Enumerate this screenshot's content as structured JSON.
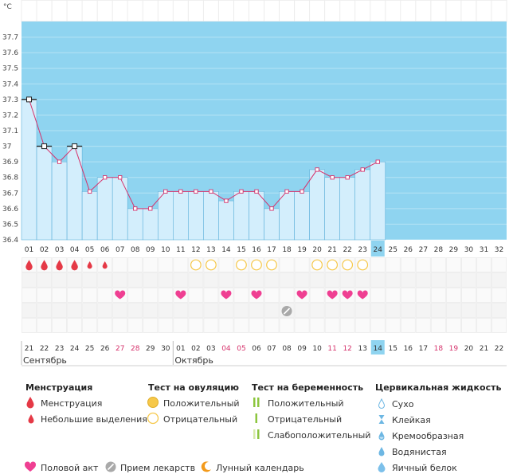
{
  "chart_data": {
    "type": "line",
    "title": "",
    "ylabel": "°C",
    "ylim": [
      36.4,
      37.8
    ],
    "yticks": [
      "36.4",
      "36.5",
      "36.6",
      "36.7",
      "36.8",
      "36.9",
      "37",
      "37.1",
      "37.2",
      "37.3",
      "37.4",
      "37.5",
      "37.6",
      "37.7"
    ],
    "cycle_days": [
      "01",
      "02",
      "03",
      "04",
      "05",
      "06",
      "07",
      "08",
      "09",
      "10",
      "11",
      "12",
      "13",
      "14",
      "15",
      "16",
      "17",
      "18",
      "19",
      "20",
      "21",
      "22",
      "23",
      "24",
      "25",
      "26",
      "27",
      "28",
      "29",
      "30",
      "31",
      "32"
    ],
    "today_index": 23,
    "temperatures": [
      37.3,
      37.0,
      36.9,
      37.0,
      36.71,
      36.8,
      36.8,
      36.6,
      36.6,
      36.71,
      36.71,
      36.71,
      36.71,
      36.65,
      36.71,
      36.71,
      36.6,
      36.71,
      36.71,
      36.85,
      36.8,
      36.8,
      36.85,
      36.9
    ],
    "marker_style": [
      "big",
      "big",
      "small",
      "big",
      "small",
      "small",
      "small",
      "small",
      "small",
      "small",
      "small",
      "small",
      "small",
      "small",
      "small",
      "small",
      "small",
      "small",
      "small",
      "small",
      "small",
      "small",
      "small",
      "small"
    ],
    "dates": [
      "21",
      "22",
      "23",
      "24",
      "25",
      "26",
      "27",
      "28",
      "29",
      "30",
      "01",
      "02",
      "03",
      "04",
      "05",
      "06",
      "07",
      "08",
      "09",
      "10",
      "11",
      "12",
      "13",
      "14",
      "15",
      "16",
      "17",
      "18",
      "19",
      "20",
      "21",
      "22"
    ],
    "weekend_dates": [
      6,
      7,
      13,
      14,
      20,
      21,
      27,
      28
    ],
    "months": [
      {
        "label": "Сентябрь",
        "start": 0
      },
      {
        "label": "Октябрь",
        "start": 10
      }
    ],
    "rows": {
      "menstruation": [
        {
          "day": 0,
          "kind": "heavy"
        },
        {
          "day": 1,
          "kind": "heavy"
        },
        {
          "day": 2,
          "kind": "heavy"
        },
        {
          "day": 3,
          "kind": "heavy"
        },
        {
          "day": 4,
          "kind": "light"
        },
        {
          "day": 5,
          "kind": "light"
        }
      ],
      "ovulation_test": [
        {
          "day": 11,
          "kind": "negative"
        },
        {
          "day": 12,
          "kind": "negative"
        },
        {
          "day": 14,
          "kind": "negative"
        },
        {
          "day": 15,
          "kind": "negative"
        },
        {
          "day": 16,
          "kind": "negative"
        },
        {
          "day": 19,
          "kind": "negative"
        },
        {
          "day": 20,
          "kind": "negative"
        },
        {
          "day": 21,
          "kind": "negative"
        },
        {
          "day": 22,
          "kind": "negative"
        }
      ],
      "intercourse": [
        6,
        10,
        13,
        15,
        18,
        20,
        21,
        22
      ],
      "medication": [
        17
      ]
    }
  },
  "colors": {
    "plot_bg": "#8fd4f0",
    "bar_fill": "#d3eefc",
    "bar_stroke": "#5eb1da",
    "line": "#d6336c",
    "today": "#8fd4f0",
    "weekend_text": "#d6336c",
    "drop": "#e53946",
    "heart": "#ef3f92",
    "circle": "#f6c84a",
    "green": "#8cc63f",
    "moon": "#f39a1b",
    "pill": "#a9a9a9"
  },
  "legend": {
    "menstruation": {
      "title": "Менструация",
      "items": [
        "Менструация",
        "Небольшие выделения"
      ]
    },
    "ovulation": {
      "title": "Тест на овуляцию",
      "items": [
        "Положительный",
        "Отрицательный"
      ]
    },
    "pregnancy": {
      "title": "Тест на беременность",
      "items": [
        "Положительный",
        "Отрицательный",
        "Слабоположительный"
      ]
    },
    "cervical": {
      "title": "Цервикальная жидкость",
      "items": [
        "Сухо",
        "Клейкая",
        "Кремообразная",
        "Водянистая",
        "Яичный белок"
      ]
    },
    "bottom": [
      "Половой акт",
      "Прием лекарств",
      "Лунный календарь"
    ]
  }
}
